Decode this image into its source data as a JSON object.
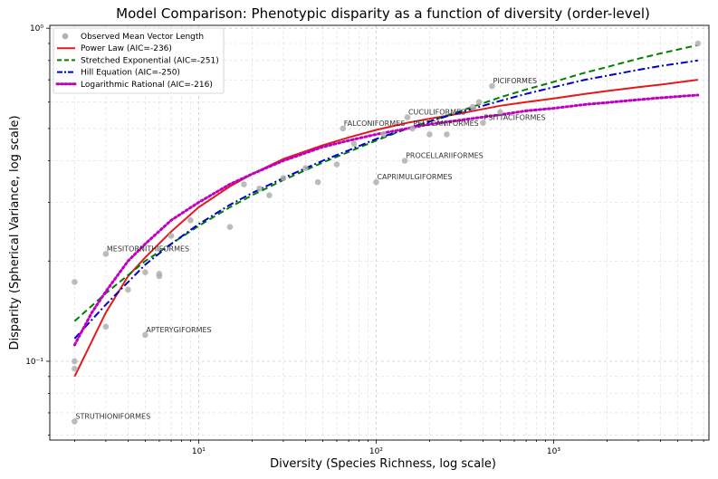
{
  "chart_data": {
    "type": "scatter",
    "title": "Model Comparison: Phenotypic disparity as a function of diversity (order-level)",
    "xlabel": "Diversity (Species Richness, log scale)",
    "ylabel": "Disparity (Spherical Variance, log scale)",
    "xscale": "log",
    "yscale": "log",
    "xlim": [
      1.45,
      7500
    ],
    "ylim": [
      0.058,
      1.02
    ],
    "grid": true,
    "legend_position": "top-left",
    "x_ticks": [
      {
        "value": 10,
        "label": "10¹"
      },
      {
        "value": 100,
        "label": "10²"
      },
      {
        "value": 1000,
        "label": "10³"
      }
    ],
    "y_ticks": [
      {
        "value": 0.1,
        "label": "10⁻¹"
      },
      {
        "value": 1,
        "label": "10⁰"
      }
    ],
    "legend": [
      {
        "label": "Observed Mean Vector Length",
        "kind": "point",
        "color": "#b0b0b0"
      },
      {
        "label": "Power Law (AIC=-236)",
        "kind": "line",
        "color": "#e31a1c",
        "dash": "solid"
      },
      {
        "label": "Stretched Exponential (AIC=-251)",
        "kind": "line",
        "color": "#008000",
        "dash": "dashed"
      },
      {
        "label": "Hill Equation (AIC=-250)",
        "kind": "line",
        "color": "#0000cc",
        "dash": "dashdot"
      },
      {
        "label": "Logarithmic Rational (AIC=-216)",
        "kind": "line",
        "color": "#c000c0",
        "dash": "dotted"
      }
    ],
    "observed_points": [
      {
        "x": 2,
        "y": 0.066,
        "label": "STRUTHIONIFORMES"
      },
      {
        "x": 2,
        "y": 0.095,
        "label": ""
      },
      {
        "x": 2,
        "y": 0.1,
        "label": ""
      },
      {
        "x": 2,
        "y": 0.173,
        "label": ""
      },
      {
        "x": 3,
        "y": 0.127,
        "label": ""
      },
      {
        "x": 3,
        "y": 0.21,
        "label": "MESITORNITHIFORMES"
      },
      {
        "x": 4,
        "y": 0.164,
        "label": ""
      },
      {
        "x": 5,
        "y": 0.12,
        "label": "APTERYGIFORMES"
      },
      {
        "x": 5,
        "y": 0.185,
        "label": ""
      },
      {
        "x": 6,
        "y": 0.18,
        "label": ""
      },
      {
        "x": 6,
        "y": 0.183,
        "label": ""
      },
      {
        "x": 7,
        "y": 0.238,
        "label": ""
      },
      {
        "x": 9,
        "y": 0.265,
        "label": ""
      },
      {
        "x": 15,
        "y": 0.253,
        "label": ""
      },
      {
        "x": 18,
        "y": 0.34,
        "label": ""
      },
      {
        "x": 22,
        "y": 0.33,
        "label": ""
      },
      {
        "x": 25,
        "y": 0.315,
        "label": ""
      },
      {
        "x": 30,
        "y": 0.355,
        "label": ""
      },
      {
        "x": 40,
        "y": 0.38,
        "label": ""
      },
      {
        "x": 47,
        "y": 0.345,
        "label": ""
      },
      {
        "x": 60,
        "y": 0.39,
        "label": ""
      },
      {
        "x": 65,
        "y": 0.5,
        "label": "FALCONIFORMES"
      },
      {
        "x": 75,
        "y": 0.45,
        "label": ""
      },
      {
        "x": 100,
        "y": 0.345,
        "label": "CAPRIMULGIFORMES"
      },
      {
        "x": 110,
        "y": 0.48,
        "label": ""
      },
      {
        "x": 145,
        "y": 0.4,
        "label": "PROCELLARIIFORMES"
      },
      {
        "x": 150,
        "y": 0.54,
        "label": "CUCULIFORMES"
      },
      {
        "x": 160,
        "y": 0.5,
        "label": "PELECANIFORMES"
      },
      {
        "x": 200,
        "y": 0.48,
        "label": ""
      },
      {
        "x": 250,
        "y": 0.48,
        "label": ""
      },
      {
        "x": 350,
        "y": 0.58,
        "label": ""
      },
      {
        "x": 380,
        "y": 0.6,
        "label": ""
      },
      {
        "x": 400,
        "y": 0.52,
        "label": "PSITTACIFORMES"
      },
      {
        "x": 450,
        "y": 0.67,
        "label": "PICIFORMES"
      },
      {
        "x": 500,
        "y": 0.56,
        "label": ""
      },
      {
        "x": 6500,
        "y": 0.9,
        "label": ""
      }
    ],
    "series": [
      {
        "name": "Power Law (AIC=-236)",
        "x": [
          2,
          3,
          4,
          5,
          7,
          10,
          15,
          20,
          30,
          50,
          70,
          100,
          150,
          200,
          300,
          500,
          700,
          1000,
          1500,
          2000,
          3000,
          4000,
          6500
        ],
        "y": [
          0.09,
          0.14,
          0.18,
          0.205,
          0.245,
          0.29,
          0.335,
          0.365,
          0.405,
          0.445,
          0.47,
          0.495,
          0.52,
          0.535,
          0.555,
          0.585,
          0.6,
          0.615,
          0.635,
          0.648,
          0.665,
          0.677,
          0.7
        ]
      },
      {
        "name": "Stretched Exponential (AIC=-251)",
        "x": [
          2,
          3,
          5,
          7,
          10,
          15,
          20,
          30,
          50,
          70,
          100,
          150,
          200,
          300,
          500,
          700,
          1000,
          1500,
          2000,
          3000,
          4000,
          6500
        ],
        "y": [
          0.132,
          0.16,
          0.2,
          0.225,
          0.255,
          0.29,
          0.315,
          0.35,
          0.395,
          0.425,
          0.46,
          0.5,
          0.525,
          0.565,
          0.62,
          0.655,
          0.69,
          0.735,
          0.765,
          0.81,
          0.84,
          0.89
        ]
      },
      {
        "name": "Hill Equation (AIC=-250)",
        "x": [
          2,
          3,
          5,
          7,
          10,
          15,
          20,
          30,
          50,
          70,
          100,
          150,
          200,
          300,
          500,
          700,
          1000,
          1500,
          2000,
          3000,
          4000,
          6500
        ],
        "y": [
          0.117,
          0.148,
          0.195,
          0.225,
          0.258,
          0.295,
          0.32,
          0.355,
          0.4,
          0.43,
          0.465,
          0.5,
          0.525,
          0.56,
          0.605,
          0.635,
          0.665,
          0.7,
          0.72,
          0.75,
          0.77,
          0.8
        ]
      },
      {
        "name": "Logarithmic Rational (AIC=-216)",
        "x": [
          2,
          2.5,
          3,
          4,
          5,
          7,
          10,
          15,
          20,
          30,
          50,
          70,
          100,
          150,
          200,
          300,
          500,
          700,
          1000,
          1500,
          2000,
          3000,
          4000,
          6500
        ],
        "y": [
          0.112,
          0.14,
          0.162,
          0.2,
          0.225,
          0.265,
          0.3,
          0.34,
          0.365,
          0.4,
          0.44,
          0.46,
          0.48,
          0.5,
          0.515,
          0.53,
          0.55,
          0.565,
          0.575,
          0.59,
          0.598,
          0.61,
          0.618,
          0.63
        ]
      }
    ]
  }
}
